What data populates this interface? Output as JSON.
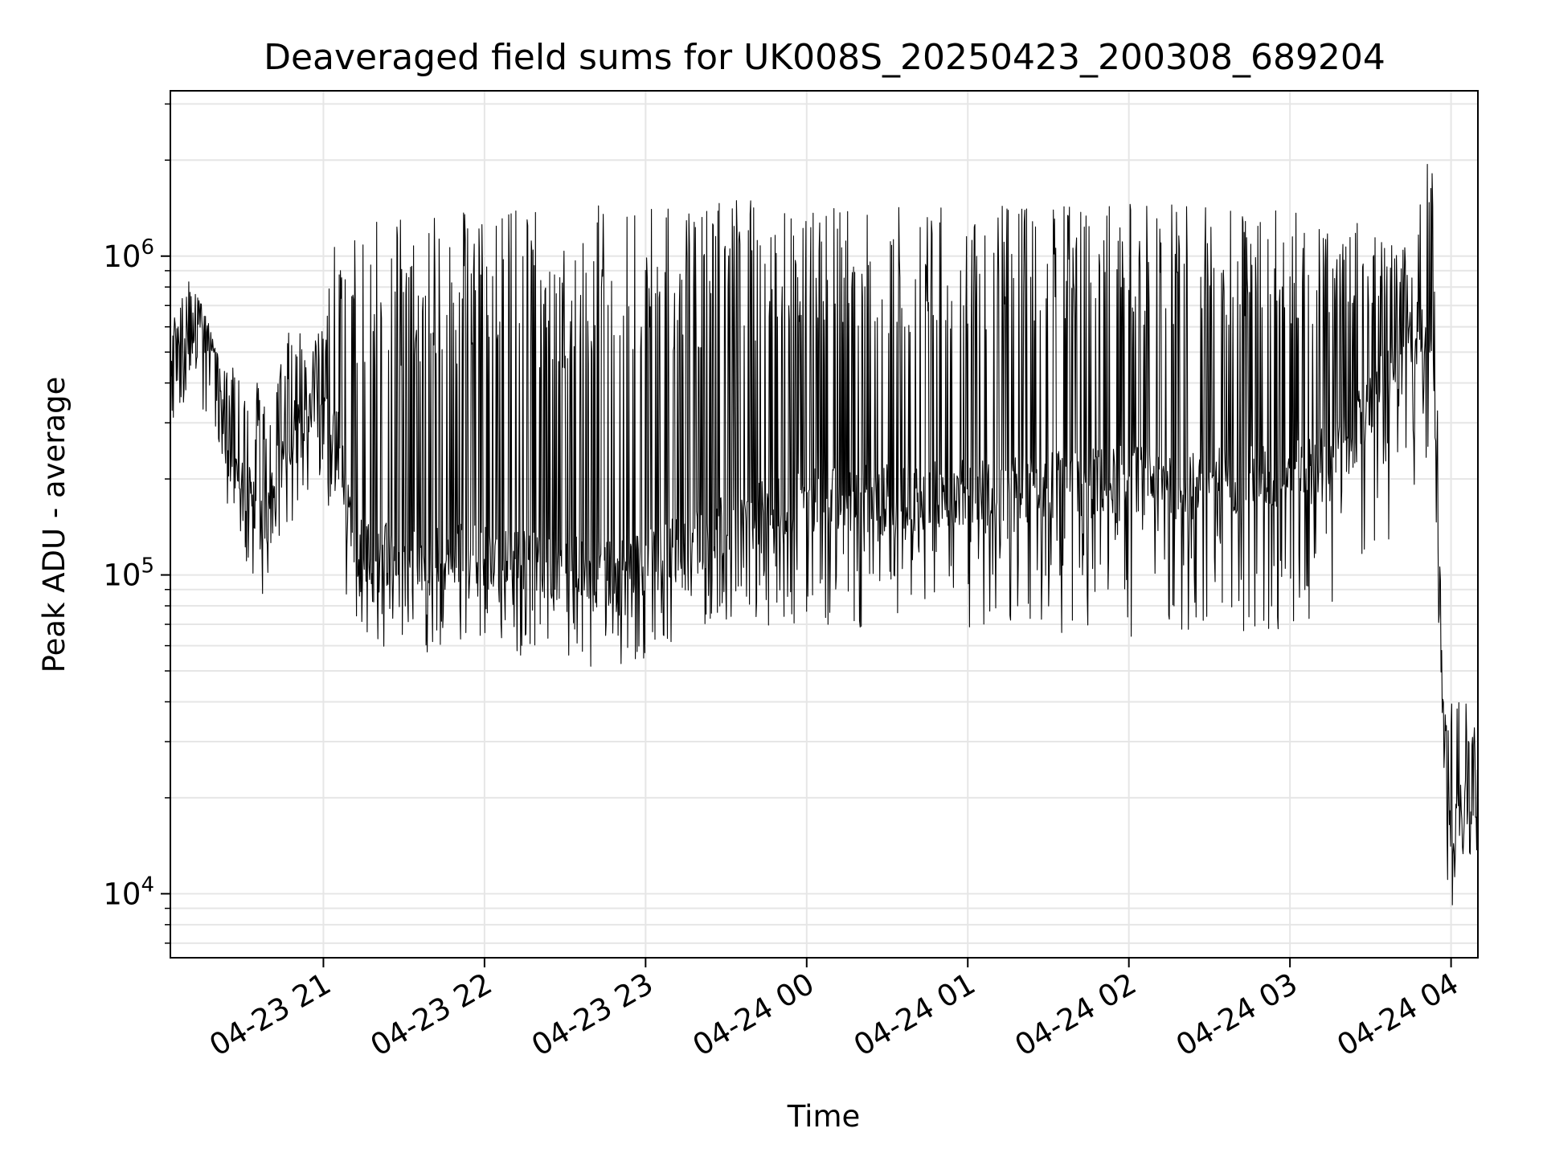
{
  "chart_data": {
    "type": "line",
    "title": "Deaveraged field sums for UK008S_20250423_200308_689204",
    "xlabel": "Time",
    "ylabel": "Peak ADU - average",
    "yscale": "log",
    "xlim": [
      "2025-04-23 20:03",
      "2025-04-24 04:10"
    ],
    "ylim": [
      6300,
      3300000
    ],
    "x_ticks": [
      {
        "value": "2025-04-23 21:00",
        "label": "04-23 21"
      },
      {
        "value": "2025-04-23 22:00",
        "label": "04-23 22"
      },
      {
        "value": "2025-04-23 23:00",
        "label": "04-23 23"
      },
      {
        "value": "2025-04-24 00:00",
        "label": "04-24 00"
      },
      {
        "value": "2025-04-24 01:00",
        "label": "04-24 01"
      },
      {
        "value": "2025-04-24 02:00",
        "label": "04-24 02"
      },
      {
        "value": "2025-04-24 03:00",
        "label": "04-24 03"
      },
      {
        "value": "2025-04-24 04:00",
        "label": "04-24 04"
      }
    ],
    "y_ticks": [
      {
        "value": 10000,
        "base": "10",
        "exp": "4"
      },
      {
        "value": 100000,
        "base": "10",
        "exp": "5"
      },
      {
        "value": 1000000,
        "base": "10",
        "exp": "6"
      }
    ],
    "grid": true,
    "line_color": "#000000",
    "series": [
      {
        "x": [
          "2025-04-23 20:03",
          "2025-04-23 20:10",
          "2025-04-23 20:15",
          "2025-04-23 20:20",
          "2025-04-23 20:25",
          "2025-04-23 20:30",
          "2025-04-23 20:35",
          "2025-04-23 20:40",
          "2025-04-23 20:45",
          "2025-04-23 20:50",
          "2025-04-23 20:55",
          "2025-04-23 21:00",
          "2025-04-23 21:05",
          "2025-04-23 21:10",
          "2025-04-23 21:15",
          "2025-04-23 21:20",
          "2025-04-23 21:30",
          "2025-04-23 21:40",
          "2025-04-23 21:50",
          "2025-04-23 22:00",
          "2025-04-23 22:15",
          "2025-04-23 22:30",
          "2025-04-23 22:45",
          "2025-04-23 23:00",
          "2025-04-23 23:20",
          "2025-04-23 23:40",
          "2025-04-24 00:00",
          "2025-04-24 00:30",
          "2025-04-24 01:00",
          "2025-04-24 01:30",
          "2025-04-24 02:00",
          "2025-04-24 02:30",
          "2025-04-24 03:00",
          "2025-04-24 03:20",
          "2025-04-24 03:35",
          "2025-04-24 03:45",
          "2025-04-24 03:53",
          "2025-04-24 03:55",
          "2025-04-24 03:57",
          "2025-04-24 04:00",
          "2025-04-24 04:05",
          "2025-04-24 04:10"
        ],
        "baseline": [
          400000,
          520000,
          600000,
          450000,
          250000,
          180000,
          160000,
          150000,
          260000,
          280000,
          330000,
          350000,
          270000,
          140000,
          120000,
          120000,
          115000,
          110000,
          112000,
          115000,
          110000,
          105000,
          100000,
          110000,
          130000,
          150000,
          170000,
          175000,
          180000,
          190000,
          200000,
          200000,
          200000,
          250000,
          400000,
          550000,
          650000,
          180000,
          30000,
          15000,
          21000,
          16000
        ],
        "peak": [
          600000,
          900000,
          720000,
          500000,
          480000,
          380000,
          400000,
          420000,
          560000,
          600000,
          540000,
          600000,
          1350000,
          1300000,
          1300000,
          1320000,
          1350000,
          1380000,
          1400000,
          1400000,
          1420000,
          1420000,
          1450000,
          1450000,
          1480000,
          1500000,
          1450000,
          1450000,
          1450000,
          1450000,
          1500000,
          1450000,
          1450000,
          1350000,
          1150000,
          1050000,
          2400000,
          400000,
          40000,
          40000,
          45000,
          30000
        ],
        "trough": [
          300000,
          350000,
          320000,
          250000,
          150000,
          110000,
          90000,
          80000,
          140000,
          150000,
          180000,
          200000,
          120000,
          62000,
          60000,
          60000,
          58000,
          57000,
          55000,
          55000,
          53000,
          53000,
          50000,
          55000,
          68000,
          70000,
          68000,
          68000,
          65000,
          65000,
          62000,
          62000,
          65000,
          75000,
          110000,
          140000,
          250000,
          70000,
          9500,
          8500,
          14000,
          12000
        ]
      }
    ]
  }
}
